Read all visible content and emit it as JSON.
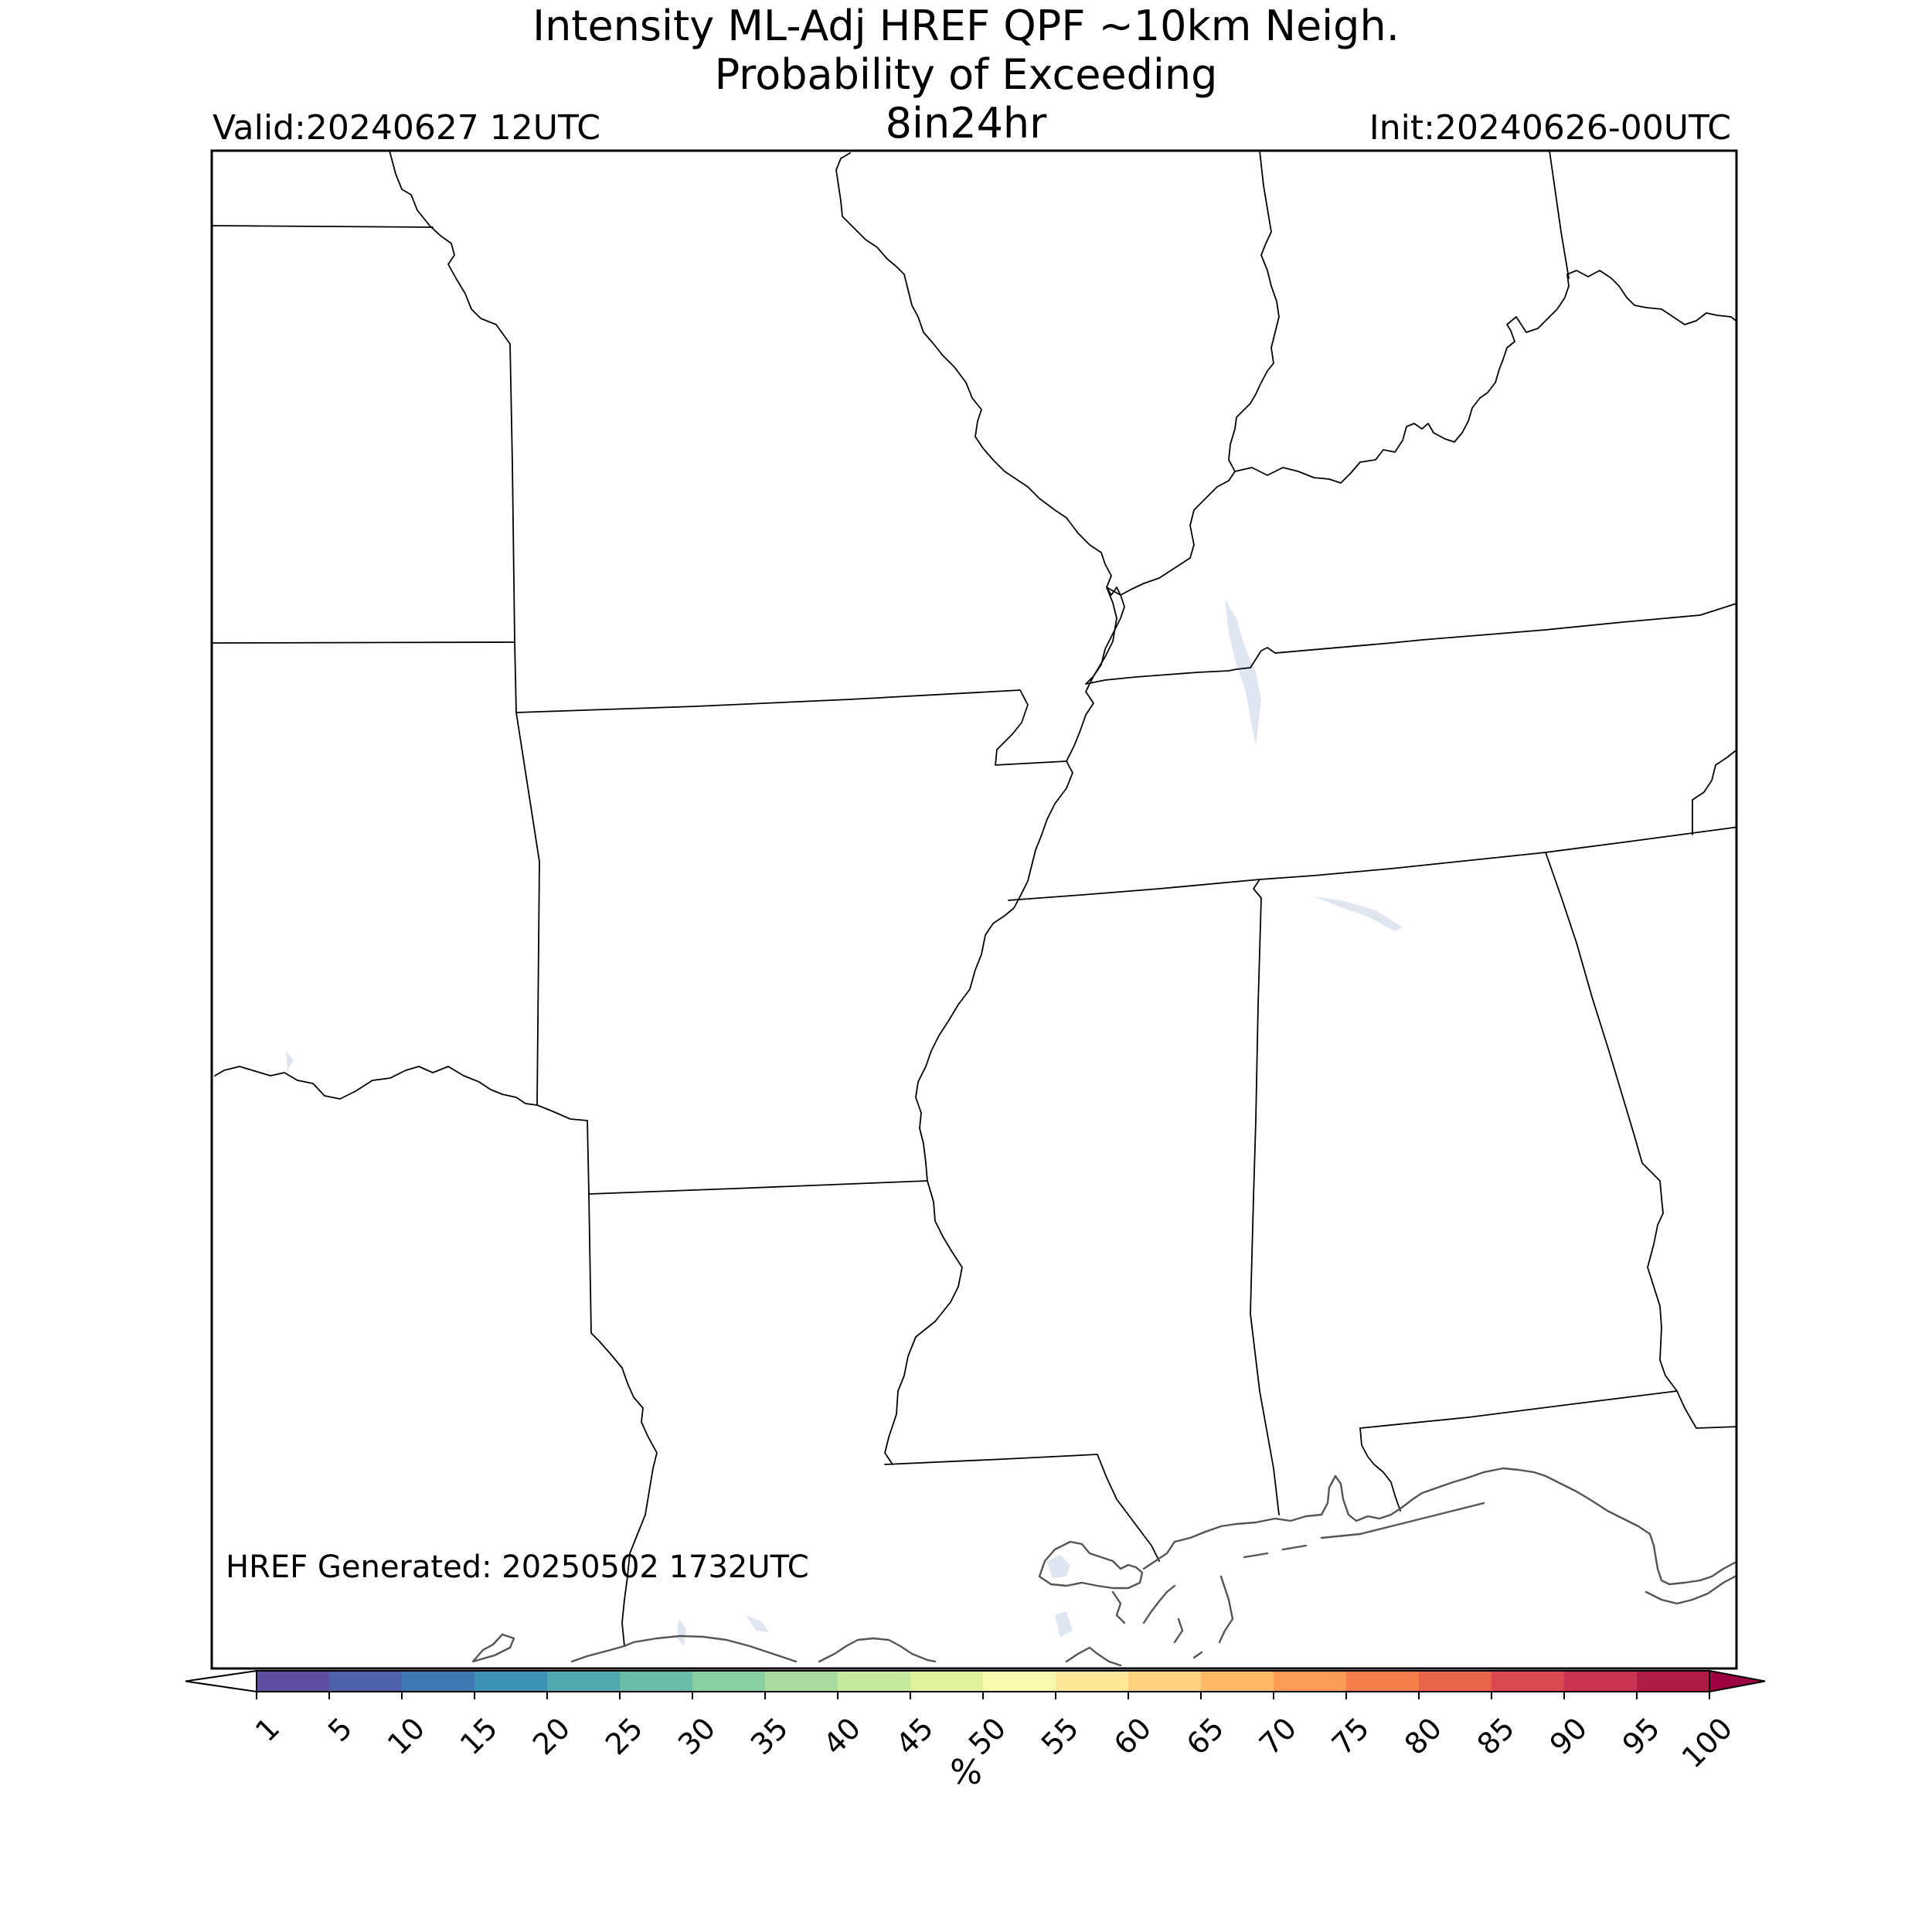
{
  "title": {
    "line1": "Intensity ML-Adj HREF QPF ~10km Neigh.",
    "line2": "Probability of Exceeding",
    "line3": "8in24hr"
  },
  "valid_label": "Valid:20240627 12UTC",
  "init_label": "Init:20240626-00UTC",
  "footer": "HREF Generated: 20250502 1732UTC",
  "colorbar": {
    "unit": "%",
    "ticks": [
      "1",
      "5",
      "10",
      "15",
      "20",
      "25",
      "30",
      "35",
      "40",
      "45",
      "50",
      "55",
      "60",
      "65",
      "70",
      "75",
      "80",
      "85",
      "90",
      "95",
      "100"
    ],
    "colors": [
      "#5e4fa2",
      "#4f61aa",
      "#3f78b3",
      "#3d91b5",
      "#51a8ae",
      "#69bca6",
      "#8acea3",
      "#aadc9f",
      "#c6e89f",
      "#e3f39d",
      "#f8f8af",
      "#fee89a",
      "#fed27f",
      "#fdb966",
      "#fc9c56",
      "#f67e4c",
      "#e8644a",
      "#d9484e",
      "#c93351",
      "#b01c48",
      "#9e0142"
    ],
    "under_color": "#ffffff",
    "over_color": "#9e0142"
  },
  "map": {
    "colors": {
      "border": "#000000",
      "coast": "#555555",
      "water": "#dfe6f2"
    }
  }
}
